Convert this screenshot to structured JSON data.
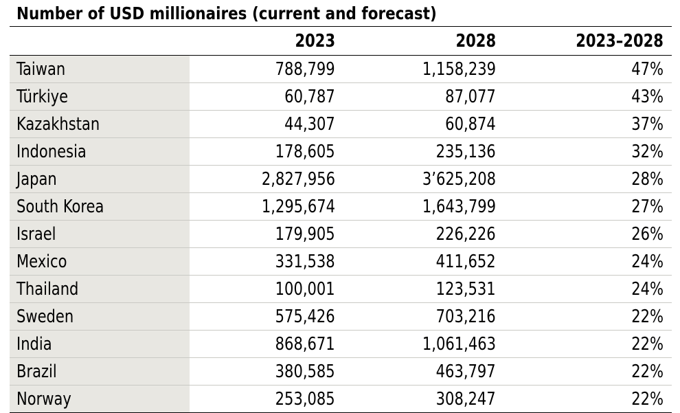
{
  "chart_data": {
    "type": "table",
    "title": "Number of USD millionaires (current and forecast)",
    "columns": [
      "",
      "2023",
      "2028",
      "2023–2028"
    ],
    "rows": [
      [
        "Taiwan",
        "788,799",
        "1,158,239",
        "47%"
      ],
      [
        "Türkiye",
        "60,787",
        "87,077",
        "43%"
      ],
      [
        "Kazakhstan",
        "44,307",
        "60,874",
        "37%"
      ],
      [
        "Indonesia",
        "178,605",
        "235,136",
        "32%"
      ],
      [
        "Japan",
        "2,827,956",
        "3’625,208",
        "28%"
      ],
      [
        "South Korea",
        "1,295,674",
        "1,643,799",
        "27%"
      ],
      [
        "Israel",
        "179,905",
        "226,226",
        "26%"
      ],
      [
        "Mexico",
        "331,538",
        "411,652",
        "24%"
      ],
      [
        "Thailand",
        "100,001",
        "123,531",
        "24%"
      ],
      [
        "Sweden",
        "575,426",
        "703,216",
        "22%"
      ],
      [
        "India",
        "868,671",
        "1,061,463",
        "22%"
      ],
      [
        "Brazil",
        "380,585",
        "463,797",
        "22%"
      ],
      [
        "Norway",
        "253,085",
        "308,247",
        "22%"
      ]
    ],
    "colors": {
      "country_column_bg": "#e8e7e2",
      "row_divider": "#c9c9c4",
      "rule": "#000000"
    }
  }
}
